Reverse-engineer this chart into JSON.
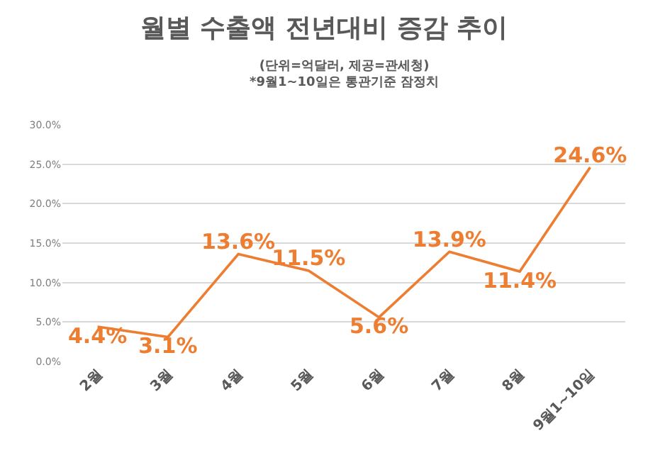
{
  "chart_data": {
    "type": "line",
    "title": "월별 수출액 전년대비 증감 추이",
    "subtitle": "(단위=억달러, 제공=관세청)\n*9월1~10일은 통관기준 잠정치",
    "categories": [
      "2월",
      "3월",
      "4월",
      "5월",
      "6월",
      "7월",
      "8월",
      "9월1~10일"
    ],
    "series": [
      {
        "color": "#ed7d31",
        "values": [
          4.4,
          3.1,
          13.6,
          11.5,
          5.6,
          13.9,
          11.4,
          24.6
        ],
        "value_labels": [
          "4.4%",
          "3.1%",
          "13.6%",
          "11.5%",
          "5.6%",
          "13.9%",
          "11.4%",
          "24.6%"
        ]
      }
    ],
    "ylim": [
      0,
      30
    ],
    "yticks": [
      {
        "value": 0,
        "label": "0.0%"
      },
      {
        "value": 5,
        "label": "5.0%"
      },
      {
        "value": 10,
        "label": "10.0%"
      },
      {
        "value": 15,
        "label": "15.0%"
      },
      {
        "value": 20,
        "label": "20.0%"
      },
      {
        "value": 25,
        "label": "25.0%"
      },
      {
        "value": 30,
        "label": "30.0%"
      }
    ],
    "grid": "y",
    "marker": "none",
    "line_style": "solid"
  }
}
